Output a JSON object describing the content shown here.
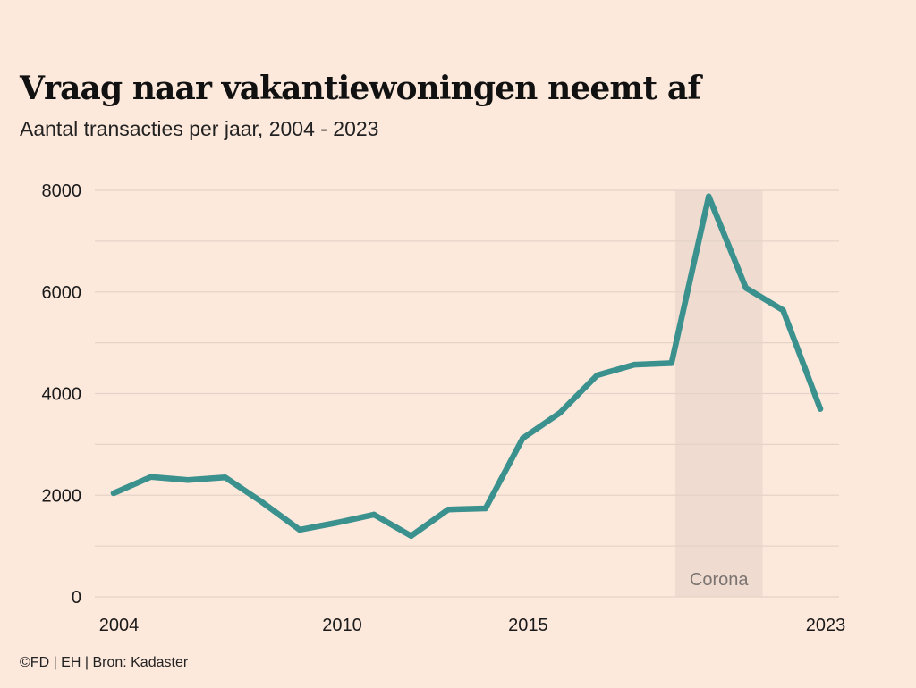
{
  "title": "Vraag naar vakantiewoningen neemt af",
  "subtitle": "Aantal transacties per jaar, 2004 - 2023",
  "source": "©FD | EH | Bron: Kadaster",
  "colors": {
    "background": "#fde9dc",
    "line": "#3a918d",
    "grid": "#e6d3c7",
    "band": "#efdbd0",
    "band_text": "#7a7370"
  },
  "chart_data": {
    "type": "line",
    "x": [
      2004,
      2005,
      2006,
      2007,
      2008,
      2009,
      2010,
      2011,
      2012,
      2013,
      2014,
      2015,
      2016,
      2017,
      2018,
      2019,
      2020,
      2021,
      2022,
      2023
    ],
    "series": [
      {
        "values": [
          2040,
          2360,
          2300,
          2350,
          1860,
          1320,
          1460,
          1620,
          1200,
          1720,
          1740,
          3120,
          3620,
          4360,
          4570,
          4600,
          7880,
          6080,
          5640,
          3700
        ]
      }
    ],
    "x_tick_labels": [
      "2004",
      "2010",
      "2015",
      "2023"
    ],
    "y_tick_labels": [
      "8000",
      "6000",
      "4000",
      "2000",
      "0"
    ],
    "y_ticks": [
      8000,
      6000,
      4000,
      2000,
      0
    ],
    "ylim": [
      0,
      8000
    ],
    "xlim": [
      2004,
      2023
    ],
    "grid": true,
    "shaded_band": {
      "label": "Corona",
      "from": 2019.1,
      "to": 2021.45
    }
  }
}
